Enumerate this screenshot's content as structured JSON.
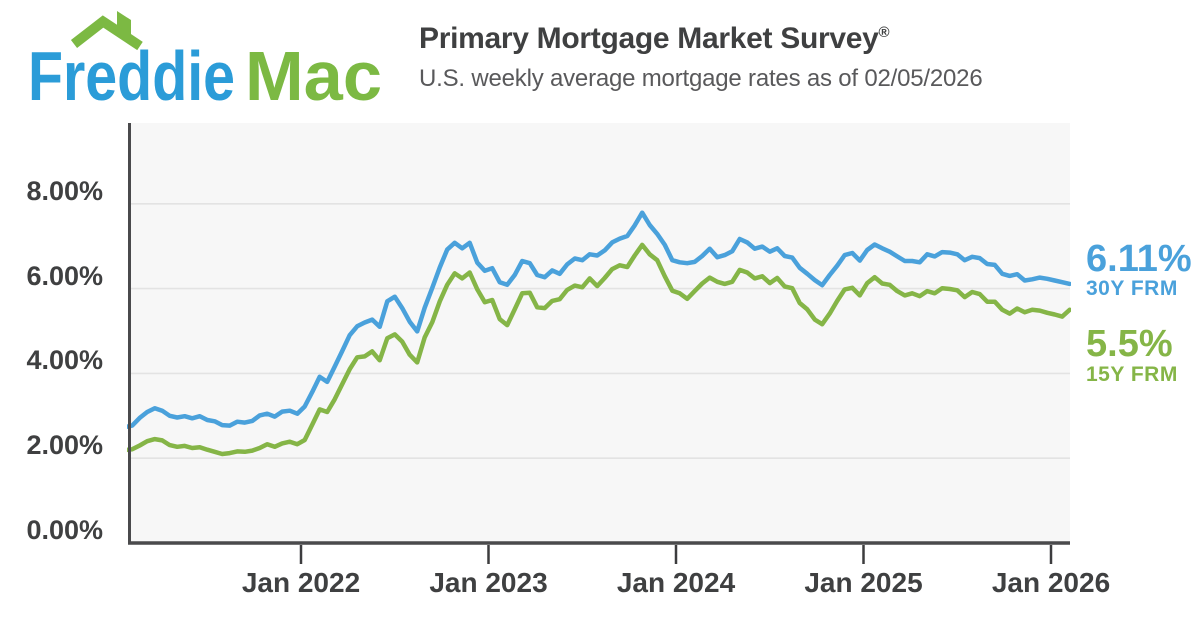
{
  "header": {
    "logo": {
      "word1": "Freddie",
      "word2": "Mac",
      "word1_color": "#2B9CD8",
      "word2_color": "#7CB943",
      "roof_color": "#7CB943"
    },
    "title": "Primary Mortgage Market Survey",
    "title_reg": "®",
    "subtitle": "U.S. weekly average mortgage rates as of 02/05/2026"
  },
  "chart_data": {
    "type": "line",
    "title": "U.S. weekly average mortgage rates",
    "as_of_date": "02/05/2026",
    "xlabel": "",
    "ylabel": "",
    "ylim": [
      0,
      9.9
    ],
    "xlim": [
      2021.06,
      2026.12
    ],
    "grid": true,
    "plot_bg": "#F7F7F7",
    "grid_color": "#E3E3E3",
    "axis_color": "#4A4A4C",
    "tick_color": "#3C3C3E",
    "legend_position": "right-end-labels",
    "x_start": 2021.06,
    "x_step": 0.04,
    "y_axis_ticks": [
      {
        "value": 8,
        "label": "8.00%"
      },
      {
        "value": 6,
        "label": "6.00%"
      },
      {
        "value": 4,
        "label": "4.00%"
      },
      {
        "value": 2,
        "label": "2.00%"
      },
      {
        "value": 0,
        "label": "0.00%"
      }
    ],
    "x_axis_ticks": [
      {
        "year": 2022,
        "label": "Jan 2022"
      },
      {
        "year": 2023,
        "label": "Jan 2023"
      },
      {
        "year": 2024,
        "label": "Jan 2024"
      },
      {
        "year": 2025,
        "label": "Jan 2025"
      },
      {
        "year": 2026,
        "label": "Jan 2026"
      }
    ],
    "series": [
      {
        "name": "30Y FRM",
        "color": "#4AA1DB",
        "end_label": "6.11%",
        "values": [
          2.73,
          2.77,
          2.95,
          3.09,
          3.18,
          3.12,
          3.0,
          2.96,
          2.99,
          2.94,
          2.99,
          2.9,
          2.87,
          2.78,
          2.77,
          2.86,
          2.84,
          2.88,
          3.01,
          3.05,
          2.98,
          3.1,
          3.12,
          3.05,
          3.22,
          3.56,
          3.92,
          3.8,
          4.16,
          4.53,
          4.9,
          5.11,
          5.2,
          5.27,
          5.1,
          5.7,
          5.81,
          5.54,
          5.22,
          4.99,
          5.55,
          6.02,
          6.5,
          6.92,
          7.08,
          6.95,
          7.08,
          6.61,
          6.42,
          6.48,
          6.15,
          6.09,
          6.32,
          6.65,
          6.6,
          6.32,
          6.27,
          6.43,
          6.35,
          6.57,
          6.71,
          6.67,
          6.81,
          6.78,
          6.9,
          7.09,
          7.18,
          7.24,
          7.49,
          7.79,
          7.5,
          7.29,
          7.03,
          6.67,
          6.62,
          6.6,
          6.63,
          6.77,
          6.94,
          6.74,
          6.79,
          6.88,
          7.17,
          7.09,
          6.94,
          6.99,
          6.87,
          6.95,
          6.77,
          6.73,
          6.49,
          6.35,
          6.2,
          6.08,
          6.32,
          6.54,
          6.79,
          6.84,
          6.66,
          6.91,
          7.04,
          6.95,
          6.87,
          6.76,
          6.65,
          6.65,
          6.62,
          6.81,
          6.76,
          6.86,
          6.85,
          6.81,
          6.67,
          6.75,
          6.72,
          6.58,
          6.56,
          6.35,
          6.3,
          6.34,
          6.19,
          6.22,
          6.26,
          6.23,
          6.19,
          6.15,
          6.11
        ]
      },
      {
        "name": "15Y FRM",
        "color": "#85B547",
        "end_label": "5.5%",
        "values": [
          2.19,
          2.21,
          2.3,
          2.4,
          2.45,
          2.42,
          2.31,
          2.27,
          2.29,
          2.24,
          2.26,
          2.2,
          2.15,
          2.1,
          2.12,
          2.16,
          2.15,
          2.18,
          2.24,
          2.33,
          2.27,
          2.35,
          2.39,
          2.33,
          2.43,
          2.79,
          3.15,
          3.09,
          3.39,
          3.75,
          4.1,
          4.38,
          4.4,
          4.52,
          4.31,
          4.83,
          4.92,
          4.75,
          4.44,
          4.26,
          4.85,
          5.21,
          5.7,
          6.09,
          6.36,
          6.24,
          6.38,
          5.98,
          5.68,
          5.73,
          5.28,
          5.14,
          5.51,
          5.89,
          5.9,
          5.56,
          5.54,
          5.71,
          5.75,
          5.97,
          6.07,
          6.03,
          6.24,
          6.06,
          6.25,
          6.46,
          6.55,
          6.51,
          6.78,
          7.03,
          6.81,
          6.67,
          6.29,
          5.95,
          5.89,
          5.76,
          5.94,
          6.12,
          6.26,
          6.16,
          6.11,
          6.16,
          6.44,
          6.38,
          6.24,
          6.29,
          6.13,
          6.25,
          6.05,
          6.01,
          5.66,
          5.51,
          5.27,
          5.16,
          5.41,
          5.71,
          5.98,
          6.02,
          5.84,
          6.13,
          6.27,
          6.12,
          6.09,
          5.94,
          5.84,
          5.89,
          5.82,
          5.94,
          5.89,
          6.01,
          5.99,
          5.96,
          5.8,
          5.92,
          5.87,
          5.69,
          5.69,
          5.5,
          5.41,
          5.53,
          5.44,
          5.5,
          5.48,
          5.43,
          5.39,
          5.34,
          5.5
        ]
      }
    ]
  }
}
